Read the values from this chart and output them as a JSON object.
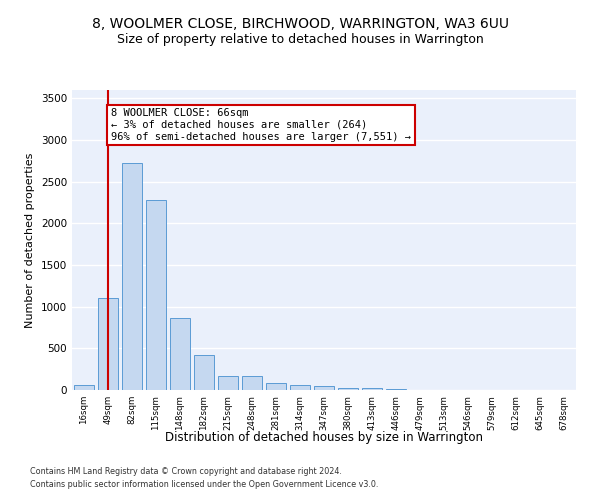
{
  "title1": "8, WOOLMER CLOSE, BIRCHWOOD, WARRINGTON, WA3 6UU",
  "title2": "Size of property relative to detached houses in Warrington",
  "xlabel": "Distribution of detached houses by size in Warrington",
  "ylabel": "Number of detached properties",
  "categories": [
    "16sqm",
    "49sqm",
    "82sqm",
    "115sqm",
    "148sqm",
    "182sqm",
    "215sqm",
    "248sqm",
    "281sqm",
    "314sqm",
    "347sqm",
    "380sqm",
    "413sqm",
    "446sqm",
    "479sqm",
    "513sqm",
    "546sqm",
    "579sqm",
    "612sqm",
    "645sqm",
    "678sqm"
  ],
  "values": [
    58,
    1100,
    2730,
    2280,
    870,
    420,
    165,
    165,
    90,
    55,
    50,
    28,
    28,
    10,
    0,
    0,
    0,
    0,
    0,
    0,
    0
  ],
  "bar_color": "#c5d8f0",
  "bar_edge_color": "#5b9bd5",
  "vline_x": 1.0,
  "vline_color": "#cc0000",
  "annotation_text": "8 WOOLMER CLOSE: 66sqm\n← 3% of detached houses are smaller (264)\n96% of semi-detached houses are larger (7,551) →",
  "annotation_box_color": "#ffffff",
  "annotation_box_edge_color": "#cc0000",
  "ylim": [
    0,
    3600
  ],
  "yticks": [
    0,
    500,
    1000,
    1500,
    2000,
    2500,
    3000,
    3500
  ],
  "bg_color": "#eaf0fb",
  "grid_color": "#ffffff",
  "footer1": "Contains HM Land Registry data © Crown copyright and database right 2024.",
  "footer2": "Contains public sector information licensed under the Open Government Licence v3.0.",
  "title1_fontsize": 10,
  "title2_fontsize": 9,
  "annot_fontsize": 7.5,
  "xlabel_fontsize": 8.5,
  "ylabel_fontsize": 8
}
